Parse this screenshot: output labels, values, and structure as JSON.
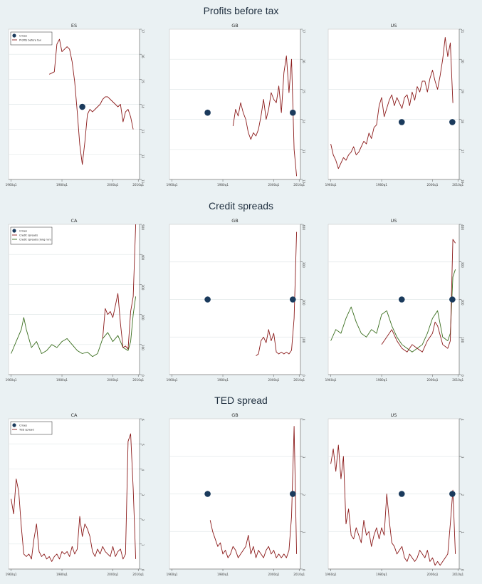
{
  "sections": [
    {
      "title": "Profits before tax"
    },
    {
      "title": "Credit spreads"
    },
    {
      "title": "TED spread"
    }
  ],
  "x_ticks": [
    "1960q1",
    "1980q1",
    "2000q1",
    "2010q1"
  ],
  "colors": {
    "series": "#8b1a1a",
    "series2": "#3a6e1e",
    "crisis": "#1a3a5c",
    "grid": "#e2e8ea",
    "background": "#eaf1f3"
  },
  "chart_data": [
    {
      "type": "line",
      "panel_title": "ES",
      "section": 0,
      "ylim": [
        11,
        17
      ],
      "y_ticks": [
        "11",
        "12",
        "13",
        "14",
        "15",
        "16",
        "17"
      ],
      "legend": {
        "items": [
          {
            "label": "Crises",
            "kind": "marker"
          },
          {
            "label": "Profits before tax",
            "kind": "line",
            "series": 0
          }
        ],
        "position": "top-left"
      },
      "crises": [
        {
          "x": 1988.0,
          "y": 13.9
        }
      ],
      "series": [
        {
          "x": [
            1975,
            1977,
            1978,
            1979,
            1980,
            1981,
            1982,
            1983,
            1984,
            1985,
            1986,
            1987,
            1988,
            1989,
            1990,
            1991,
            1992,
            1993,
            1994,
            1995,
            1996,
            1997,
            1998,
            1999,
            2000,
            2001,
            2002,
            2003,
            2004,
            2005,
            2006,
            2007,
            2008
          ],
          "values": [
            15.2,
            15.3,
            16.4,
            16.6,
            16.1,
            16.2,
            16.3,
            16.2,
            15.7,
            14.9,
            13.7,
            12.4,
            11.6,
            12.5,
            13.6,
            13.8,
            13.7,
            13.8,
            13.9,
            14.0,
            14.2,
            14.3,
            14.3,
            14.2,
            14.1,
            14.0,
            13.9,
            14.0,
            13.3,
            13.7,
            13.8,
            13.5,
            13.0
          ]
        }
      ]
    },
    {
      "type": "line",
      "panel_title": "GB",
      "section": 0,
      "ylim": [
        12,
        16.5
      ],
      "y_ticks": [
        "12",
        "13",
        "14",
        "15",
        "16",
        "17"
      ],
      "crises": [
        {
          "x": 1974.0,
          "y": 14.0
        },
        {
          "x": 2007.5,
          "y": 14.0
        }
      ],
      "series": [
        {
          "x": [
            1984,
            1985,
            1986,
            1987,
            1988,
            1989,
            1990,
            1991,
            1992,
            1993,
            1994,
            1995,
            1996,
            1997,
            1998,
            1999,
            2000,
            2001,
            2002,
            2003,
            2004,
            2005,
            2006,
            2007,
            2008,
            2009
          ],
          "values": [
            13.6,
            14.1,
            13.9,
            14.3,
            14.0,
            13.8,
            13.4,
            13.2,
            13.4,
            13.3,
            13.5,
            13.9,
            14.4,
            13.8,
            14.1,
            14.6,
            14.4,
            14.3,
            14.8,
            14.0,
            15.2,
            15.7,
            14.6,
            15.6,
            12.9,
            12.1
          ]
        }
      ]
    },
    {
      "type": "line",
      "panel_title": "US",
      "section": 0,
      "ylim": [
        16,
        21.5
      ],
      "y_ticks": [
        "16",
        "17",
        "18",
        "19",
        "20",
        "21"
      ],
      "crises": [
        {
          "x": 1987.9,
          "y": 18.1
        },
        {
          "x": 2007.8,
          "y": 18.1
        }
      ],
      "series": [
        {
          "x": [
            1960,
            1961,
            1962,
            1963,
            1964,
            1965,
            1966,
            1967,
            1968,
            1969,
            1970,
            1971,
            1972,
            1973,
            1974,
            1975,
            1976,
            1977,
            1978,
            1979,
            1980,
            1981,
            1982,
            1983,
            1984,
            1985,
            1986,
            1987,
            1988,
            1989,
            1990,
            1991,
            1992,
            1993,
            1994,
            1995,
            1996,
            1997,
            1998,
            1999,
            2000,
            2001,
            2002,
            2003,
            2004,
            2005,
            2006,
            2007,
            2008
          ],
          "values": [
            17.3,
            16.9,
            16.7,
            16.4,
            16.6,
            16.8,
            16.7,
            16.9,
            17.0,
            17.2,
            16.9,
            17.0,
            17.2,
            17.4,
            17.3,
            17.7,
            17.5,
            17.9,
            18.0,
            18.7,
            19.0,
            18.3,
            18.6,
            18.9,
            19.1,
            18.7,
            19.0,
            18.8,
            18.6,
            19.0,
            19.1,
            18.7,
            19.2,
            18.9,
            19.4,
            19.2,
            19.6,
            19.6,
            19.2,
            19.7,
            20.0,
            19.6,
            19.3,
            19.8,
            20.4,
            21.2,
            20.5,
            21.0,
            18.8
          ]
        }
      ]
    },
    {
      "type": "line",
      "panel_title": "CA",
      "section": 1,
      "ylim": [
        0,
        500
      ],
      "y_ticks": [
        "0",
        "100",
        "200",
        "300",
        "400",
        "500"
      ],
      "legend": {
        "items": [
          {
            "label": "Crises",
            "kind": "marker"
          },
          {
            "label": "Credit spreads",
            "kind": "line",
            "series": 0
          },
          {
            "label": "Credit spreads (long run)",
            "kind": "line",
            "series": 1
          }
        ],
        "position": "top-left"
      },
      "crises": [],
      "series": [
        {
          "x": [
            1996,
            1997,
            1998,
            1999,
            2000,
            2001,
            2002,
            2003,
            2004,
            2005,
            2006,
            2007,
            2008,
            2009
          ],
          "values": [
            120,
            220,
            200,
            210,
            190,
            230,
            270,
            170,
            90,
            95,
            85,
            210,
            260,
            500
          ]
        },
        {
          "x": [
            1960,
            1962,
            1964,
            1965,
            1966,
            1968,
            1970,
            1972,
            1974,
            1976,
            1978,
            1980,
            1982,
            1984,
            1986,
            1988,
            1990,
            1992,
            1994,
            1996,
            1998,
            2000,
            2002,
            2004,
            2006,
            2007,
            2008,
            2009
          ],
          "values": [
            70,
            110,
            150,
            190,
            150,
            90,
            110,
            70,
            80,
            100,
            90,
            110,
            120,
            100,
            80,
            70,
            75,
            60,
            70,
            120,
            140,
            110,
            130,
            90,
            80,
            110,
            200,
            260
          ]
        }
      ]
    },
    {
      "type": "line",
      "panel_title": "GB",
      "section": 1,
      "ylim": [
        0,
        400
      ],
      "y_ticks": [
        "0",
        "100",
        "200",
        "300",
        "400"
      ],
      "crises": [
        {
          "x": 1974.0,
          "y": 200
        },
        {
          "x": 2007.5,
          "y": 200
        }
      ],
      "series": [
        {
          "x": [
            1993,
            1994,
            1995,
            1996,
            1997,
            1998,
            1999,
            2000,
            2001,
            2002,
            2003,
            2004,
            2005,
            2006,
            2007,
            2008,
            2009
          ],
          "values": [
            50,
            55,
            90,
            100,
            85,
            120,
            90,
            110,
            60,
            55,
            60,
            55,
            60,
            55,
            65,
            150,
            380
          ]
        }
      ]
    },
    {
      "type": "line",
      "panel_title": "US",
      "section": 1,
      "ylim": [
        0,
        400
      ],
      "y_ticks": [
        "0",
        "100",
        "200",
        "300",
        "400"
      ],
      "crises": [
        {
          "x": 1987.9,
          "y": 200
        },
        {
          "x": 2007.8,
          "y": 200
        }
      ],
      "series": [
        {
          "x": [
            1980,
            1982,
            1984,
            1986,
            1988,
            1990,
            1992,
            1994,
            1996,
            1998,
            2000,
            2001,
            2002,
            2004,
            2006,
            2007,
            2008,
            2009
          ],
          "values": [
            80,
            100,
            120,
            90,
            70,
            60,
            80,
            70,
            60,
            90,
            110,
            140,
            130,
            80,
            70,
            90,
            360,
            350
          ]
        },
        {
          "x": [
            1960,
            1962,
            1964,
            1966,
            1968,
            1970,
            1972,
            1974,
            1976,
            1978,
            1980,
            1982,
            1984,
            1986,
            1988,
            1990,
            1992,
            1994,
            1996,
            1998,
            2000,
            2002,
            2004,
            2006,
            2007,
            2008,
            2009
          ],
          "values": [
            90,
            120,
            110,
            150,
            180,
            140,
            110,
            100,
            120,
            110,
            160,
            170,
            130,
            100,
            80,
            70,
            60,
            70,
            80,
            110,
            150,
            170,
            100,
            90,
            110,
            260,
            280
          ]
        }
      ]
    },
    {
      "type": "line",
      "panel_title": "CA",
      "section": 2,
      "ylim": [
        0,
        6
      ],
      "y_ticks": [
        "0",
        "1",
        "2",
        "3",
        "4",
        "5",
        "6"
      ],
      "legend": {
        "items": [
          {
            "label": "Crises",
            "kind": "marker"
          },
          {
            "label": "TED spread",
            "kind": "line",
            "series": 0
          }
        ],
        "position": "top-left"
      },
      "crises": [],
      "series": [
        {
          "x": [
            1960,
            1961,
            1962,
            1963,
            1964,
            1965,
            1966,
            1967,
            1968,
            1969,
            1970,
            1971,
            1972,
            1973,
            1974,
            1975,
            1976,
            1977,
            1978,
            1979,
            1980,
            1981,
            1982,
            1983,
            1984,
            1985,
            1986,
            1987,
            1988,
            1989,
            1990,
            1991,
            1992,
            1993,
            1994,
            1995,
            1996,
            1997,
            1998,
            1999,
            2000,
            2001,
            2002,
            2003,
            2004,
            2005,
            2006,
            2007,
            2008,
            2009
          ],
          "values": [
            2.8,
            2.2,
            3.6,
            3.1,
            1.7,
            0.6,
            0.5,
            0.6,
            0.4,
            1.2,
            1.8,
            0.7,
            0.5,
            0.6,
            0.4,
            0.5,
            0.3,
            0.5,
            0.6,
            0.4,
            0.7,
            0.6,
            0.7,
            0.5,
            0.9,
            0.6,
            0.8,
            2.1,
            1.3,
            1.8,
            1.6,
            1.3,
            0.7,
            0.5,
            0.8,
            0.6,
            0.9,
            0.7,
            0.6,
            0.5,
            0.9,
            0.5,
            0.7,
            0.8,
            0.4,
            0.6,
            5.1,
            5.4,
            3.2,
            0.4
          ]
        }
      ]
    },
    {
      "type": "line",
      "panel_title": "GB",
      "section": 2,
      "ylim": [
        0,
        4
      ],
      "y_ticks": [
        "0",
        "1",
        "2",
        "3",
        "4"
      ],
      "crises": [
        {
          "x": 1974.0,
          "y": 2.0
        },
        {
          "x": 2007.5,
          "y": 2.0
        }
      ],
      "series": [
        {
          "x": [
            1975,
            1976,
            1977,
            1978,
            1979,
            1980,
            1981,
            1982,
            1983,
            1984,
            1985,
            1986,
            1987,
            1988,
            1989,
            1990,
            1991,
            1992,
            1993,
            1994,
            1995,
            1996,
            1997,
            1998,
            1999,
            2000,
            2001,
            2002,
            2003,
            2004,
            2005,
            2006,
            2007,
            2008,
            2009
          ],
          "values": [
            1.3,
            1.0,
            0.8,
            0.6,
            0.7,
            0.4,
            0.5,
            0.3,
            0.4,
            0.6,
            0.5,
            0.3,
            0.4,
            0.5,
            0.6,
            0.9,
            0.4,
            0.6,
            0.3,
            0.5,
            0.4,
            0.3,
            0.5,
            0.6,
            0.4,
            0.5,
            0.3,
            0.4,
            0.3,
            0.4,
            0.3,
            0.5,
            1.4,
            3.8,
            0.4
          ]
        }
      ]
    },
    {
      "type": "line",
      "panel_title": "US",
      "section": 2,
      "ylim": [
        0,
        4
      ],
      "y_ticks": [
        "0",
        "1",
        "2",
        "3",
        "4"
      ],
      "crises": [
        {
          "x": 1987.9,
          "y": 2.0
        },
        {
          "x": 2007.8,
          "y": 2.0
        }
      ],
      "series": [
        {
          "x": [
            1960,
            1961,
            1962,
            1963,
            1964,
            1965,
            1966,
            1967,
            1968,
            1969,
            1970,
            1971,
            1972,
            1973,
            1974,
            1975,
            1976,
            1977,
            1978,
            1979,
            1980,
            1981,
            1982,
            1983,
            1984,
            1985,
            1986,
            1987,
            1988,
            1989,
            1990,
            1991,
            1992,
            1993,
            1994,
            1995,
            1996,
            1997,
            1998,
            1999,
            2000,
            2001,
            2002,
            2003,
            2004,
            2005,
            2006,
            2007,
            2008,
            2009
          ],
          "values": [
            2.8,
            3.2,
            2.6,
            3.3,
            2.4,
            3.0,
            1.2,
            1.6,
            0.9,
            0.8,
            1.1,
            0.9,
            0.7,
            1.3,
            0.9,
            1.0,
            0.6,
            0.9,
            1.1,
            0.8,
            1.1,
            0.9,
            2.0,
            1.3,
            0.7,
            0.6,
            0.4,
            0.5,
            0.6,
            0.3,
            0.2,
            0.4,
            0.3,
            0.2,
            0.3,
            0.5,
            0.4,
            0.3,
            0.5,
            0.2,
            0.3,
            0.1,
            0.2,
            0.1,
            0.2,
            0.3,
            0.4,
            1.2,
            2.1,
            0.4
          ]
        }
      ]
    }
  ]
}
